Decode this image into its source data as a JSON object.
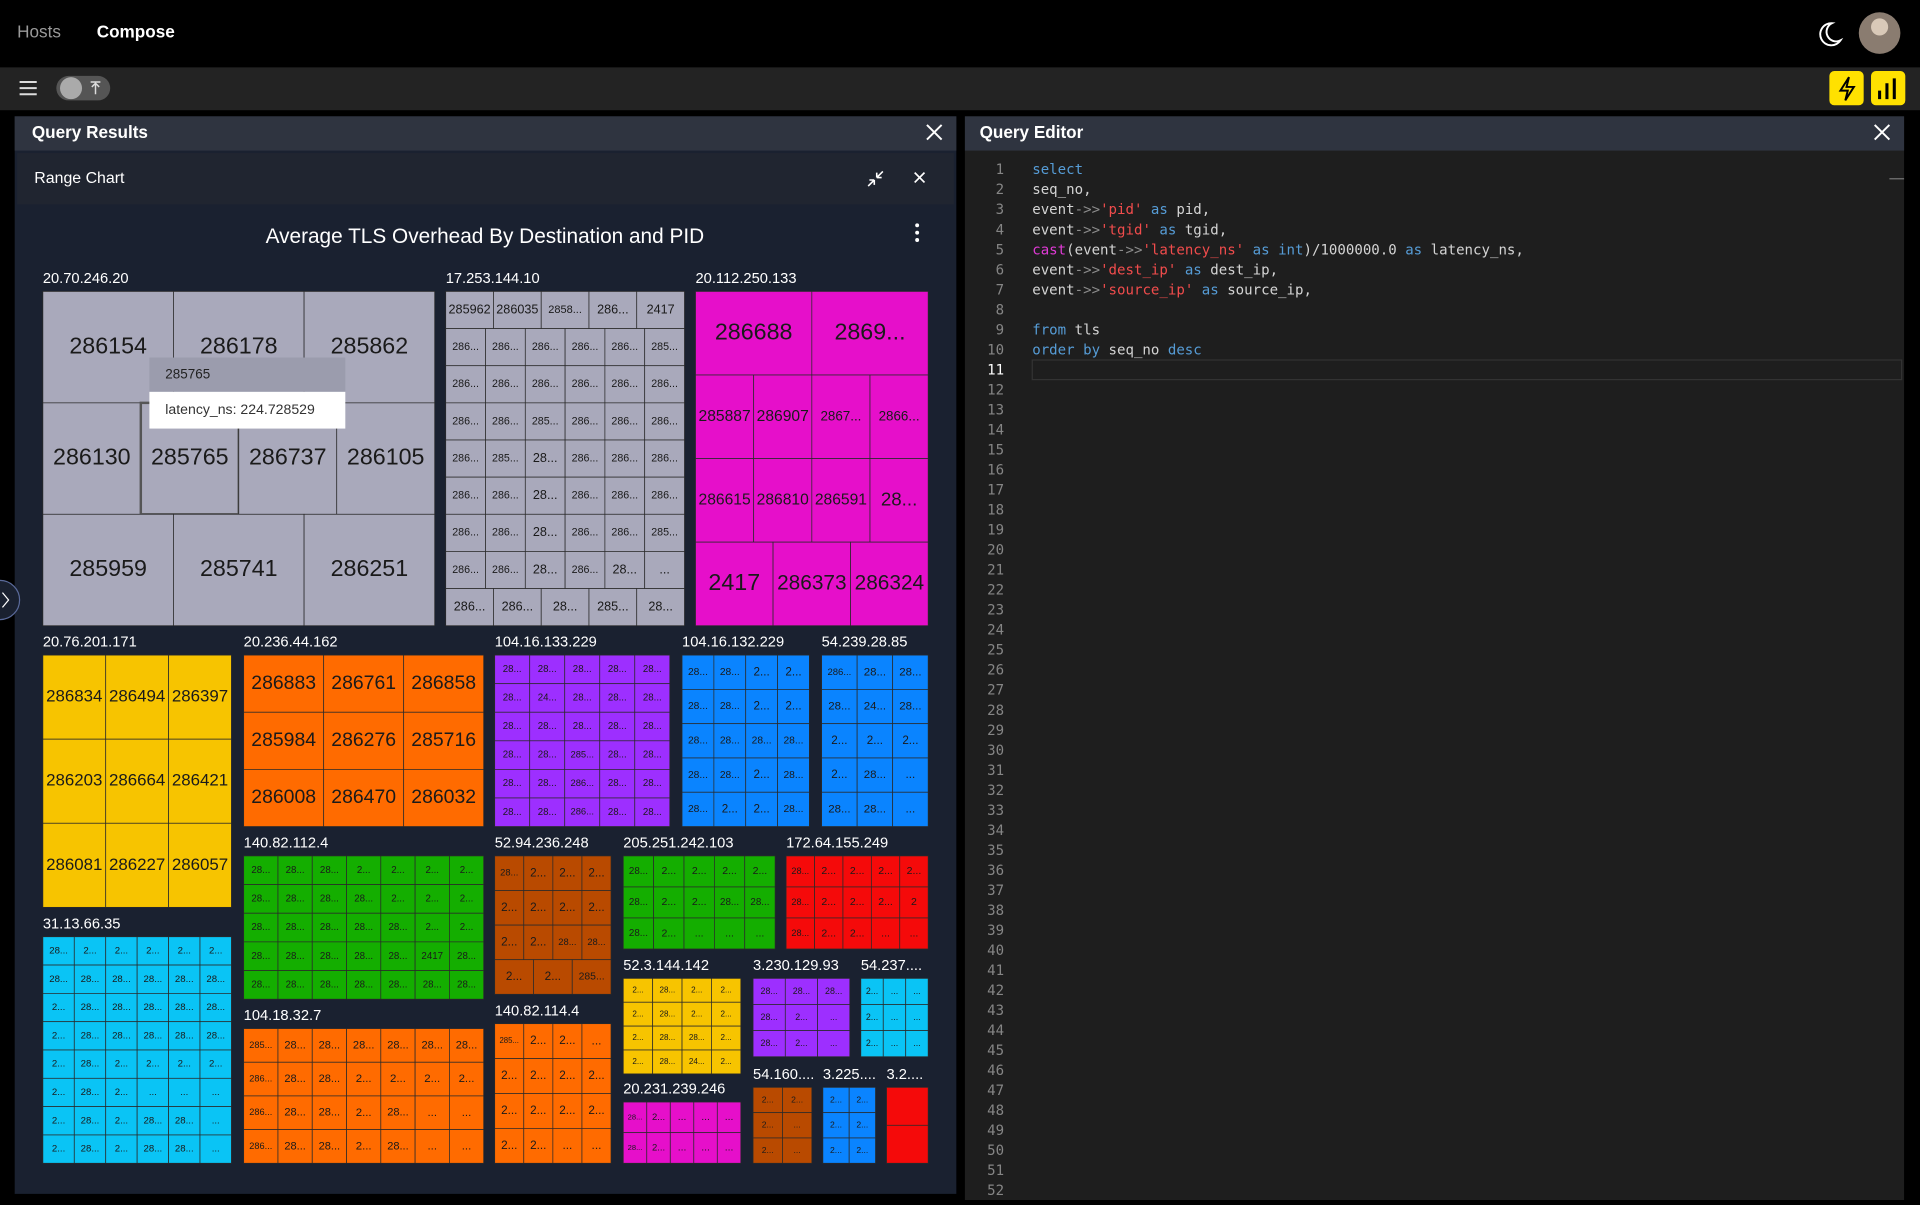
{
  "nav": {
    "hosts": "Hosts",
    "compose": "Compose"
  },
  "results": {
    "title": "Query Results",
    "panel": "Range Chart",
    "chart_title": "Average TLS Overhead By Destination and PID",
    "tooltip": {
      "title": "285765",
      "text": "latency_ns: 224.728529"
    },
    "groups": [
      {
        "label": "20.70.246.20",
        "color": "#a9a9bb",
        "rows": [
          [
            "286154",
            "286178",
            "285862"
          ],
          [
            "286130",
            "285765",
            "286737",
            "286105"
          ],
          [
            "285959",
            "285741",
            "286251"
          ]
        ]
      },
      {
        "label": "17.253.144.10",
        "color": "#a9a9bb",
        "rows": [
          [
            "285962",
            "286035",
            "2858...",
            "286...",
            "2417"
          ],
          [
            "286...",
            "286...",
            "286...",
            "286...",
            "286...",
            "285..."
          ],
          [
            "286...",
            "286...",
            "286...",
            "286...",
            "286...",
            "286..."
          ],
          [
            "286...",
            "286...",
            "285...",
            "286...",
            "286...",
            "286..."
          ],
          [
            "286...",
            "285...",
            "28...",
            "286...",
            "286...",
            "286..."
          ],
          [
            "286...",
            "286...",
            "28...",
            "286...",
            "286...",
            "286..."
          ],
          [
            "286...",
            "286...",
            "28...",
            "286...",
            "286...",
            "285..."
          ],
          [
            "286...",
            "286...",
            "28...",
            "286...",
            "28...",
            "..."
          ],
          [
            "286...",
            "286...",
            "28...",
            "285...",
            "28..."
          ]
        ]
      },
      {
        "label": "20.112.250.133",
        "color": "#e60fca",
        "rows": [
          [
            "286688",
            "2869..."
          ],
          [
            "285887",
            "286907",
            "2867...",
            "2866..."
          ],
          [
            "286615",
            "286810",
            "286591",
            "28..."
          ],
          [
            "2417",
            "286373",
            "286324"
          ]
        ]
      },
      {
        "label": "20.76.201.171",
        "color": "#f7c400",
        "rows": [
          [
            "286834",
            "286494",
            "286397"
          ],
          [
            "286203",
            "286664",
            "286421"
          ],
          [
            "286081",
            "286227",
            "286057"
          ]
        ]
      },
      {
        "label": "20.236.44.162",
        "color": "#ff6b00",
        "rows": [
          [
            "286883",
            "286761",
            "286858"
          ],
          [
            "285984",
            "286276",
            "285716"
          ],
          [
            "286008",
            "286470",
            "286032"
          ]
        ]
      },
      {
        "label": "104.16.133.229",
        "color": "#9d2fff",
        "rows": [
          [
            "28...",
            "28...",
            "28...",
            "28...",
            "28..."
          ],
          [
            "28...",
            "24...",
            "28...",
            "28...",
            "28..."
          ],
          [
            "28...",
            "28...",
            "28...",
            "28...",
            "28..."
          ],
          [
            "28...",
            "28...",
            "285...",
            "28...",
            "28..."
          ],
          [
            "28...",
            "28...",
            "286...",
            "28...",
            "28..."
          ],
          [
            "28...",
            "28...",
            "286...",
            "28...",
            "28..."
          ]
        ]
      },
      {
        "label": "104.16.132.229",
        "color": "#0a84ff",
        "rows": [
          [
            "28...",
            "28...",
            "2...",
            "2..."
          ],
          [
            "28...",
            "28...",
            "2...",
            "2..."
          ],
          [
            "28...",
            "28...",
            "28...",
            "28..."
          ],
          [
            "28...",
            "28...",
            "2...",
            "28..."
          ],
          [
            "28...",
            "2...",
            "2...",
            "28..."
          ]
        ]
      },
      {
        "label": "54.239.28.85",
        "color": "#0a84ff",
        "rows": [
          [
            "286...",
            "28...",
            "28..."
          ],
          [
            "28...",
            "24...",
            "28..."
          ],
          [
            "2...",
            "2...",
            "2..."
          ],
          [
            "2...",
            "28...",
            "..."
          ],
          [
            "28...",
            "28...",
            "..."
          ]
        ]
      },
      {
        "label": "140.82.112.4",
        "color": "#14ae00",
        "rows": [
          [
            "28...",
            "28...",
            "28...",
            "2...",
            "2...",
            "2...",
            "2..."
          ],
          [
            "28...",
            "28...",
            "28...",
            "28...",
            "2...",
            "2...",
            "2..."
          ],
          [
            "28...",
            "28...",
            "28...",
            "28...",
            "28...",
            "2...",
            "2..."
          ],
          [
            "28...",
            "28...",
            "28...",
            "28...",
            "28...",
            "2417",
            "28..."
          ],
          [
            "28...",
            "28...",
            "28...",
            "28...",
            "28...",
            "28...",
            "28..."
          ]
        ]
      },
      {
        "label": "52.94.236.248",
        "color": "#b94a00",
        "rows": [
          [
            "28...",
            "2...",
            "2...",
            "2..."
          ],
          [
            "2...",
            "2...",
            "2...",
            "2..."
          ],
          [
            "2...",
            "2...",
            "28...",
            "28..."
          ],
          [
            "2...",
            "2...",
            "285..."
          ]
        ]
      },
      {
        "label": "205.251.242.103",
        "color": "#14ae00",
        "rows": [
          [
            "28...",
            "2...",
            "2...",
            "2...",
            "2..."
          ],
          [
            "28...",
            "2...",
            "2...",
            "28...",
            "28..."
          ],
          [
            "28...",
            "2...",
            "...",
            "...",
            "..."
          ]
        ]
      },
      {
        "label": "172.64.155.249",
        "color": "#f50a0a",
        "rows": [
          [
            "28...",
            "2...",
            "2...",
            "2...",
            "2..."
          ],
          [
            "28...",
            "2...",
            "2...",
            "2...",
            "2"
          ],
          [
            "28...",
            "2...",
            "2...",
            "...",
            "..."
          ]
        ]
      },
      {
        "label": "31.13.66.35",
        "color": "#0ac4f5",
        "rows": [
          [
            "28...",
            "2...",
            "2...",
            "2...",
            "2...",
            "2..."
          ],
          [
            "28...",
            "28...",
            "28...",
            "28...",
            "28...",
            "28..."
          ],
          [
            "2...",
            "28...",
            "28...",
            "28...",
            "28...",
            "28..."
          ],
          [
            "2...",
            "28...",
            "28...",
            "28...",
            "28...",
            "28..."
          ],
          [
            "2...",
            "28...",
            "2...",
            "2...",
            "2...",
            "2..."
          ],
          [
            "2...",
            "28...",
            "2...",
            "...",
            "...",
            "..."
          ],
          [
            "2...",
            "28...",
            "2...",
            "28...",
            "28...",
            "..."
          ],
          [
            "2...",
            "28...",
            "2...",
            "28...",
            "28...",
            "..."
          ]
        ]
      },
      {
        "label": "104.18.32.7",
        "color": "#ff6b00",
        "rows": [
          [
            "285...",
            "28...",
            "28...",
            "28...",
            "28...",
            "28...",
            "28..."
          ],
          [
            "286...",
            "28...",
            "28...",
            "2...",
            "2...",
            "2...",
            "2..."
          ],
          [
            "286...",
            "28...",
            "28...",
            "2...",
            "28...",
            "...",
            "..."
          ],
          [
            "286...",
            "28...",
            "28...",
            "2...",
            "28...",
            "...",
            "..."
          ]
        ]
      },
      {
        "label": "140.82.114.4",
        "color": "#ff6b00",
        "rows": [
          [
            "285...",
            "2...",
            "2...",
            "..."
          ],
          [
            "2...",
            "2...",
            "2...",
            "2..."
          ],
          [
            "2...",
            "2...",
            "2...",
            "2..."
          ],
          [
            "2...",
            "2...",
            "...",
            "..."
          ]
        ]
      },
      {
        "label": "52.3.144.142",
        "color": "#f7c400",
        "rows": [
          [
            "2...",
            "28...",
            "2...",
            "2..."
          ],
          [
            "2...",
            "28...",
            "2...",
            "2..."
          ],
          [
            "2...",
            "28...",
            "28...",
            "2..."
          ],
          [
            "2...",
            "28...",
            "24...",
            "2..."
          ]
        ]
      },
      {
        "label": "3.230.129.93",
        "color": "#9d2fff",
        "rows": [
          [
            "28...",
            "28...",
            "28..."
          ],
          [
            "28...",
            "2...",
            "..."
          ],
          [
            "28...",
            "2...",
            "..."
          ]
        ]
      },
      {
        "label": "54.237....",
        "color": "#0ac4f5",
        "rows": [
          [
            "2...",
            "...",
            "..."
          ],
          [
            "2...",
            "...",
            "..."
          ],
          [
            "2...",
            "...",
            "..."
          ]
        ]
      },
      {
        "label": "20.231.239.246",
        "color": "#e60fca",
        "rows": [
          [
            "28...",
            "2...",
            "...",
            "...",
            "..."
          ],
          [
            "28...",
            "2...",
            "...",
            "...",
            "..."
          ]
        ]
      },
      {
        "label": "54.160....",
        "color": "#b94a00",
        "rows": [
          [
            "2...",
            "2..."
          ],
          [
            "2...",
            "..."
          ],
          [
            "2...",
            "..."
          ]
        ]
      },
      {
        "label": "3.225....",
        "color": "#0a84ff",
        "rows": [
          [
            "2...",
            "2..."
          ],
          [
            "2...",
            "2..."
          ],
          [
            "2...",
            "2..."
          ]
        ]
      },
      {
        "label": "3.2....",
        "color": "#f50a0a",
        "rows": [
          [
            null
          ],
          [
            null
          ]
        ]
      }
    ]
  },
  "editor": {
    "title": "Query Editor",
    "line_numbers": [
      1,
      2,
      3,
      4,
      5,
      6,
      7,
      8,
      9,
      10,
      11,
      12,
      13,
      14,
      15,
      16,
      17,
      18,
      19,
      20,
      21,
      22,
      23,
      24,
      25,
      26,
      27,
      28,
      29,
      30,
      31,
      32,
      33,
      34,
      35,
      36,
      37,
      38,
      39,
      40,
      41,
      42,
      43,
      44,
      45,
      46,
      47,
      48,
      49,
      50,
      51,
      52
    ],
    "lines": [
      [
        [
          "select",
          "#569cd6"
        ]
      ],
      [
        [
          "seq_no,",
          "#d4d4d4"
        ]
      ],
      [
        [
          "event",
          "#d4d4d4"
        ],
        [
          "->>",
          "#8c8c8c"
        ],
        [
          "'pid'",
          "#f14c4c"
        ],
        [
          " as ",
          "#569cd6"
        ],
        [
          "pid,",
          "#d4d4d4"
        ]
      ],
      [
        [
          "event",
          "#d4d4d4"
        ],
        [
          "->>",
          "#8c8c8c"
        ],
        [
          "'tgid'",
          "#f14c4c"
        ],
        [
          " as ",
          "#569cd6"
        ],
        [
          "tgid,",
          "#d4d4d4"
        ]
      ],
      [
        [
          "cast",
          "#e03ad6"
        ],
        [
          "(event",
          "#d4d4d4"
        ],
        [
          "->>",
          "#8c8c8c"
        ],
        [
          "'latency_ns'",
          "#f14c4c"
        ],
        [
          " as ",
          "#569cd6"
        ],
        [
          "int",
          "#569cd6"
        ],
        [
          ")/1000000.0",
          "#d4d4d4"
        ],
        [
          " as ",
          "#569cd6"
        ],
        [
          "latency_ns,",
          "#d4d4d4"
        ]
      ],
      [
        [
          "event",
          "#d4d4d4"
        ],
        [
          "->>",
          "#8c8c8c"
        ],
        [
          "'dest_ip'",
          "#f14c4c"
        ],
        [
          " as ",
          "#569cd6"
        ],
        [
          "dest_ip,",
          "#d4d4d4"
        ]
      ],
      [
        [
          "event",
          "#d4d4d4"
        ],
        [
          "->>",
          "#8c8c8c"
        ],
        [
          "'source_ip'",
          "#f14c4c"
        ],
        [
          " as ",
          "#569cd6"
        ],
        [
          "source_ip,",
          "#d4d4d4"
        ]
      ],
      [],
      [
        [
          "from",
          "#569cd6"
        ],
        [
          " tls",
          "#d4d4d4"
        ]
      ],
      [
        [
          "order by",
          "#569cd6"
        ],
        [
          " seq_no ",
          "#d4d4d4"
        ],
        [
          "desc",
          "#569cd6"
        ]
      ]
    ]
  }
}
